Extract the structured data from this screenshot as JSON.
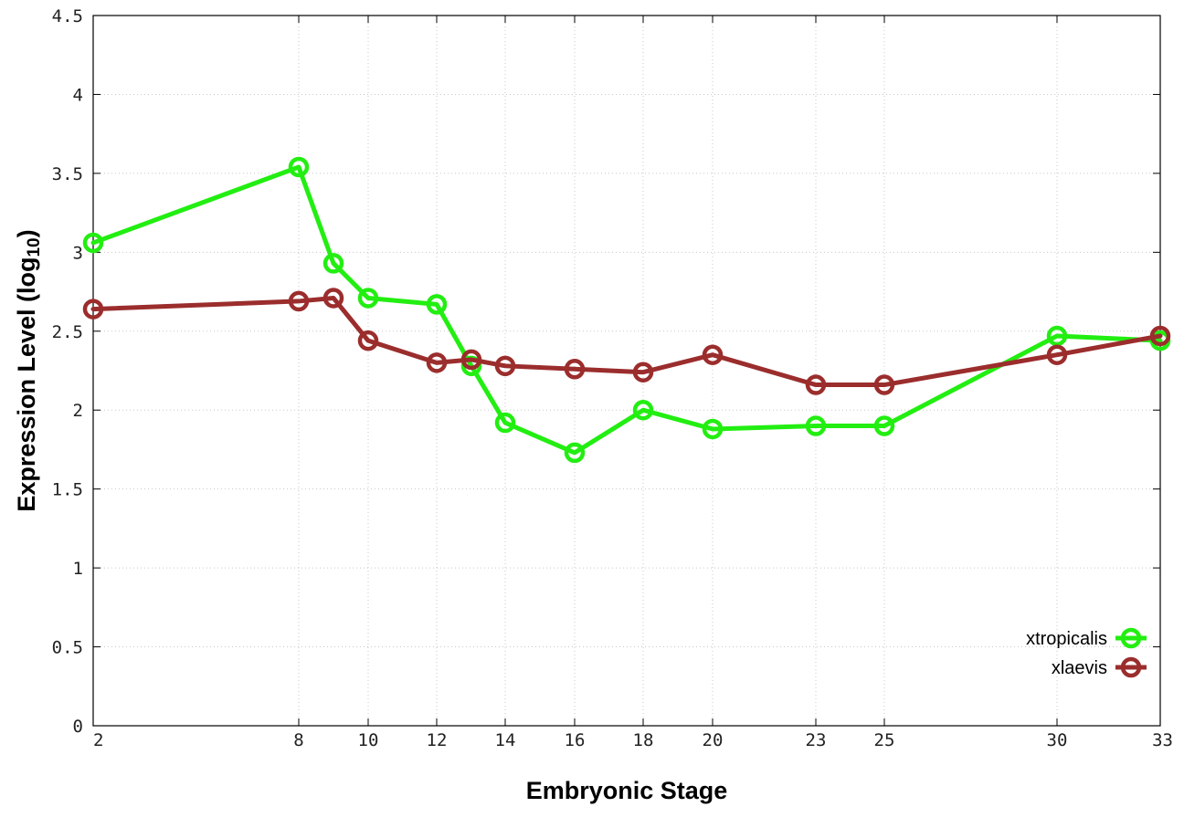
{
  "chart_data": {
    "type": "line",
    "title": "",
    "xlabel": "Embryonic Stage",
    "ylabel_main": "Expression Level (log",
    "ylabel_sub": "10",
    "ylabel_close": ")",
    "x_ticks": [
      "2",
      "8",
      "10",
      "12",
      "14",
      "16",
      "18",
      "20",
      "23",
      "25",
      "30",
      "33"
    ],
    "y_ticks": [
      "0",
      "0.5",
      "1",
      "1.5",
      "2",
      "2.5",
      "3",
      "3.5",
      "4",
      "4.5"
    ],
    "ylim": [
      0,
      4.5
    ],
    "grid": true,
    "legend_position": "bottom-right",
    "series": [
      {
        "name": "xtropicalis",
        "color": "#22ee11",
        "marker": "open-circle",
        "points": [
          {
            "x": "2",
            "y": 3.06
          },
          {
            "x": "8",
            "y": 3.54
          },
          {
            "x": "9",
            "y": 2.93
          },
          {
            "x": "10",
            "y": 2.71
          },
          {
            "x": "12",
            "y": 2.67
          },
          {
            "x": "13",
            "y": 2.28
          },
          {
            "x": "14",
            "y": 1.92
          },
          {
            "x": "16",
            "y": 1.73
          },
          {
            "x": "18",
            "y": 2.0
          },
          {
            "x": "20",
            "y": 1.88
          },
          {
            "x": "23",
            "y": 1.9
          },
          {
            "x": "25",
            "y": 1.9
          },
          {
            "x": "30",
            "y": 2.47
          },
          {
            "x": "33",
            "y": 2.44
          }
        ]
      },
      {
        "name": "xlaevis",
        "color": "#9b2d2d",
        "marker": "open-circle",
        "points": [
          {
            "x": "2",
            "y": 2.64
          },
          {
            "x": "8",
            "y": 2.69
          },
          {
            "x": "9",
            "y": 2.71
          },
          {
            "x": "10",
            "y": 2.44
          },
          {
            "x": "12",
            "y": 2.3
          },
          {
            "x": "13",
            "y": 2.32
          },
          {
            "x": "14",
            "y": 2.28
          },
          {
            "x": "16",
            "y": 2.26
          },
          {
            "x": "18",
            "y": 2.24
          },
          {
            "x": "20",
            "y": 2.35
          },
          {
            "x": "23",
            "y": 2.16
          },
          {
            "x": "25",
            "y": 2.16
          },
          {
            "x": "30",
            "y": 2.35
          },
          {
            "x": "33",
            "y": 2.47
          }
        ]
      }
    ]
  }
}
